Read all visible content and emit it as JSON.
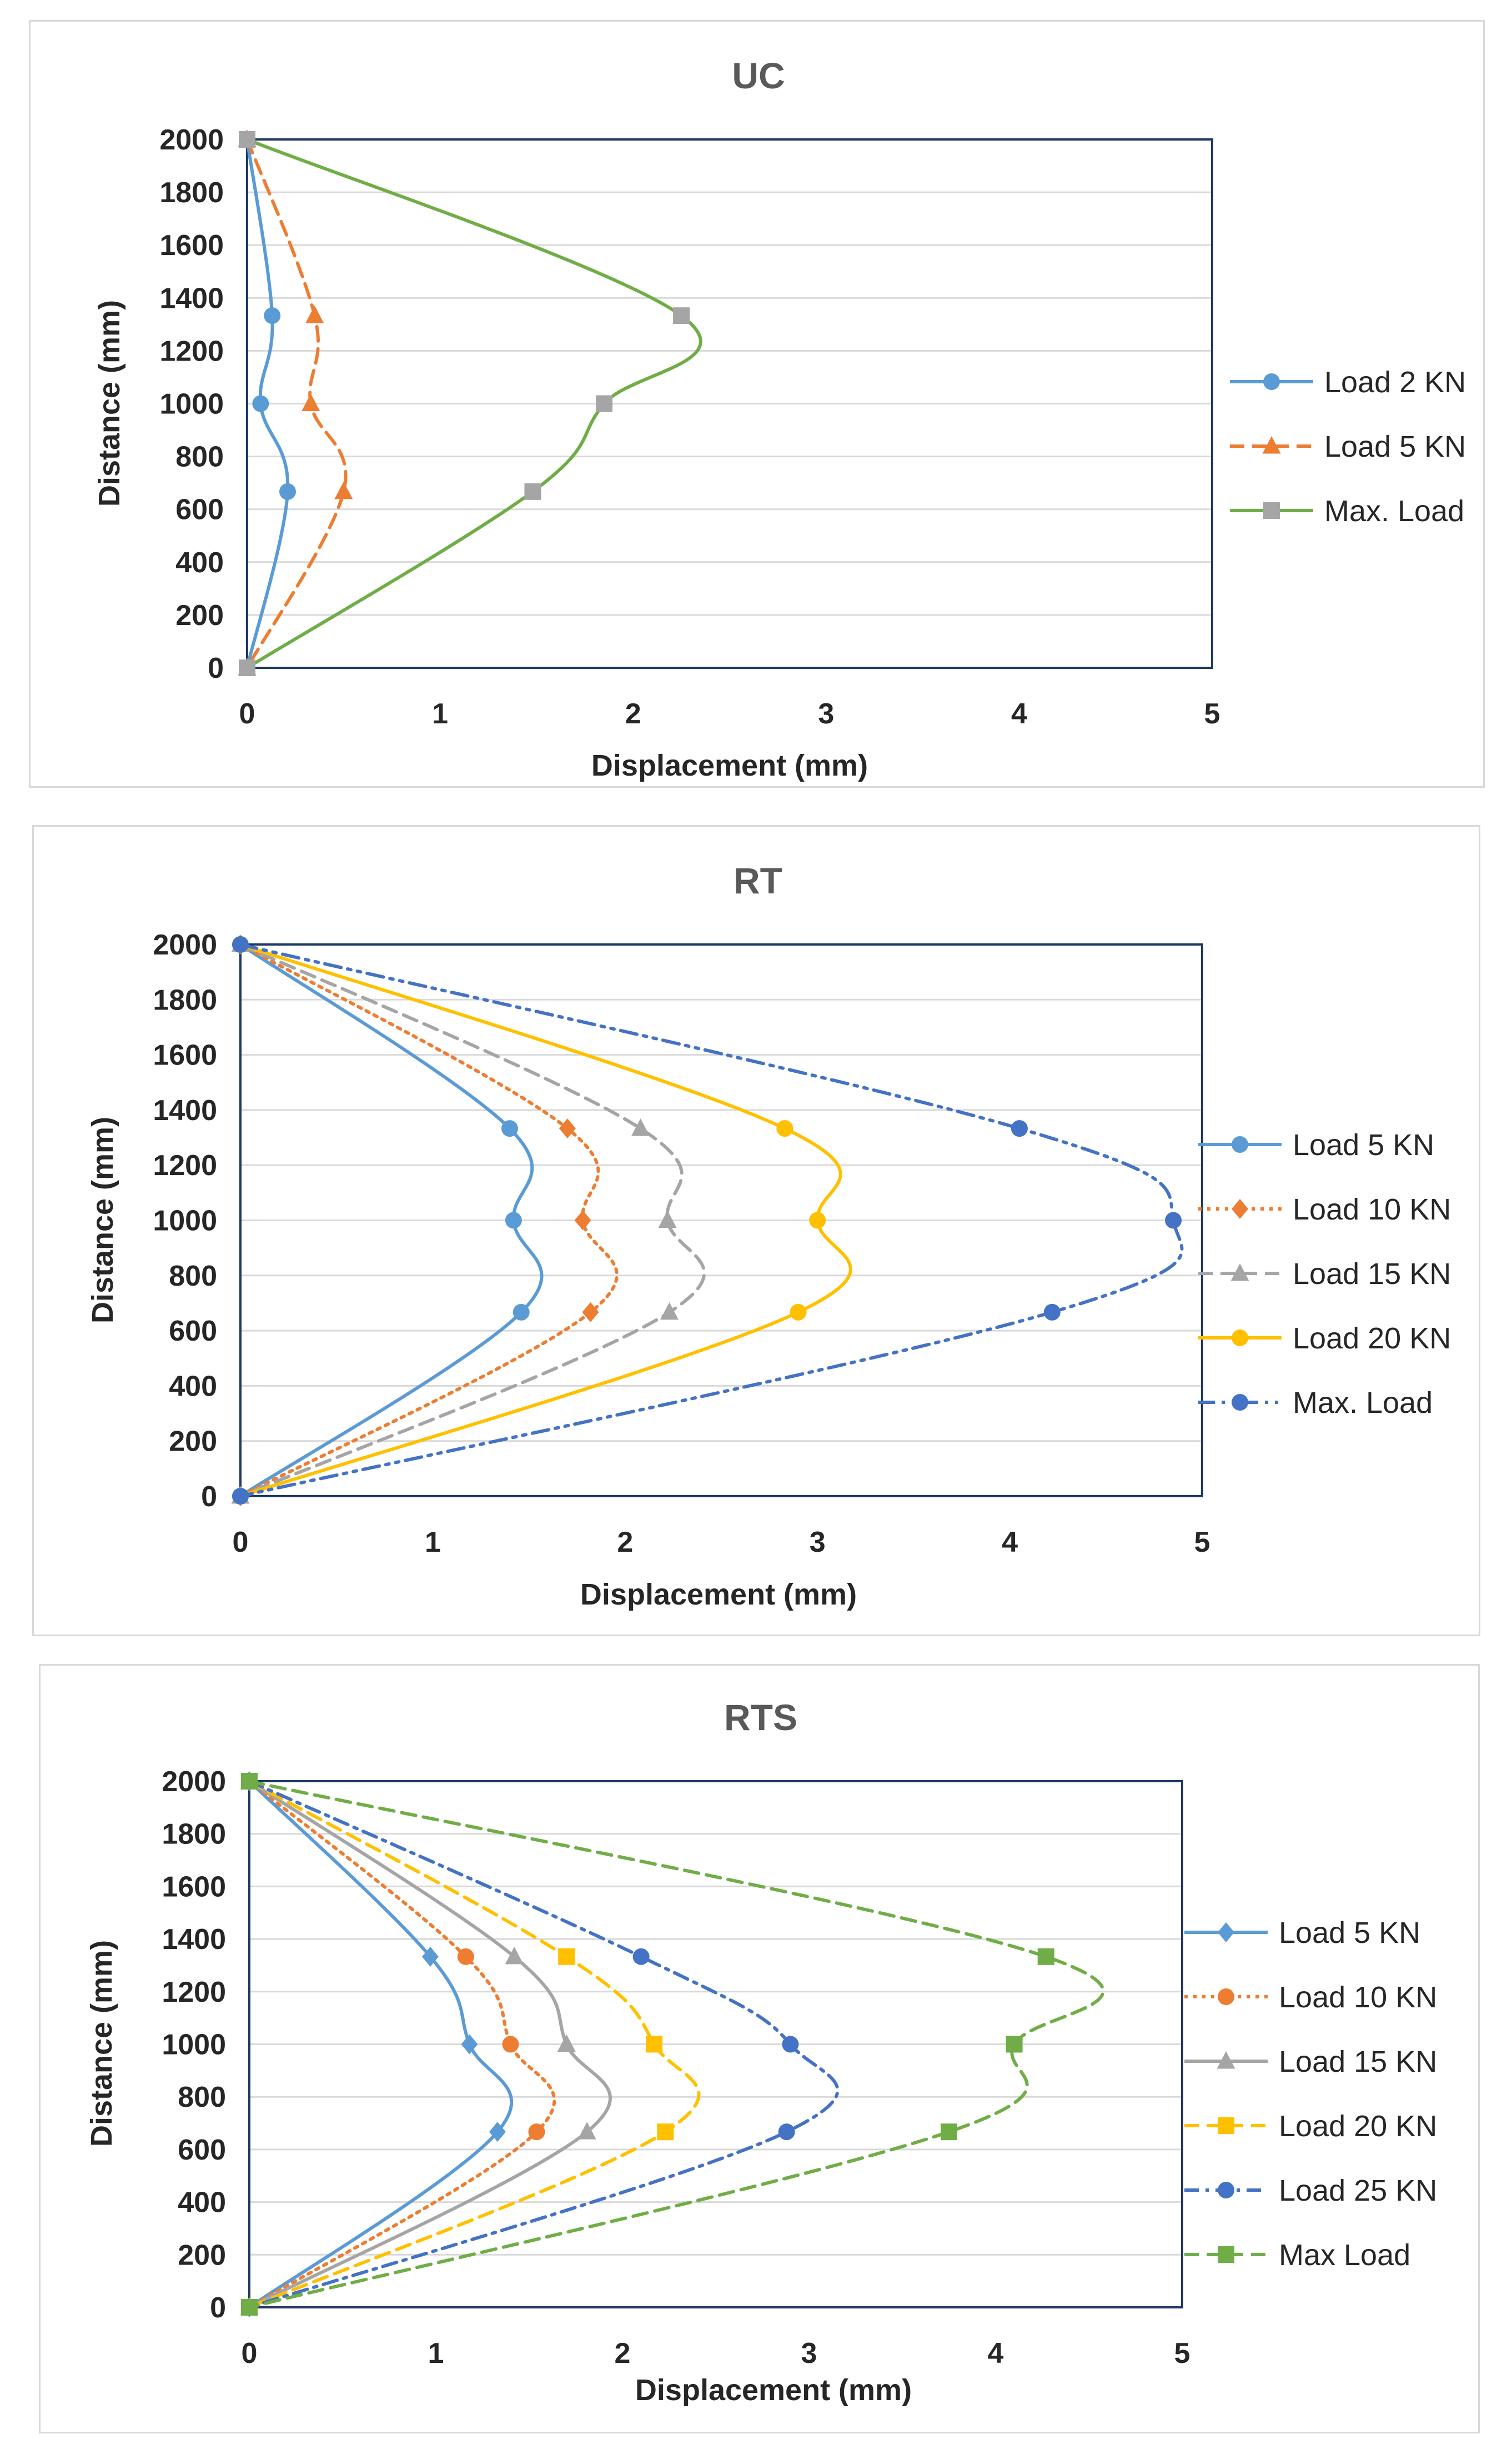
{
  "chart_data": [
    {
      "type": "line",
      "title": "UC",
      "xlabel": "Displacement (mm)",
      "ylabel": "Distance (mm)",
      "xlim": [
        0,
        5
      ],
      "ylim": [
        0,
        2000
      ],
      "xticks": [
        "0",
        "1",
        "2",
        "3",
        "4",
        "5"
      ],
      "yticks": [
        "0",
        "200",
        "400",
        "600",
        "800",
        "1000",
        "1200",
        "1400",
        "1600",
        "1800",
        "2000"
      ],
      "grid": "horizontal",
      "legend_position": "right",
      "series": [
        {
          "name": "Load 2 KN",
          "color": "#5b9bd5",
          "dash": "solid",
          "marker": "circle",
          "x": [
            0,
            0.13,
            0.07,
            0.21,
            0
          ],
          "y": [
            2000,
            1333,
            1000,
            667,
            0
          ]
        },
        {
          "name": "Load 5 KN",
          "color": "#ed7d31",
          "dash": "dash",
          "marker": "triangle",
          "x": [
            0,
            0.35,
            0.33,
            0.5,
            0
          ],
          "y": [
            2000,
            1333,
            1000,
            667,
            0
          ]
        },
        {
          "name": "Max. Load",
          "color": "#70ad47",
          "dash": "solid",
          "marker": "square",
          "marker_color": "#a5a5a5",
          "x": [
            0,
            2.25,
            1.85,
            1.48,
            0
          ],
          "y": [
            2000,
            1333,
            1000,
            667,
            0
          ]
        }
      ]
    },
    {
      "type": "line",
      "title": "RT",
      "xlabel": "Displacement (mm)",
      "ylabel": "Distance (mm)",
      "xlim": [
        0,
        5
      ],
      "ylim": [
        0,
        2000
      ],
      "xticks": [
        "0",
        "1",
        "2",
        "3",
        "4",
        "5"
      ],
      "yticks": [
        "0",
        "200",
        "400",
        "600",
        "800",
        "1000",
        "1200",
        "1400",
        "1600",
        "1800",
        "2000"
      ],
      "grid": "horizontal",
      "legend_position": "right",
      "series": [
        {
          "name": "Load 5 KN",
          "color": "#5b9bd5",
          "dash": "solid",
          "marker": "circle",
          "x": [
            0,
            1.4,
            1.42,
            1.46,
            0
          ],
          "y": [
            2000,
            1333,
            1000,
            667,
            0
          ]
        },
        {
          "name": "Load 10 KN",
          "color": "#ed7d31",
          "dash": "dot",
          "marker": "diamond",
          "x": [
            0,
            1.7,
            1.78,
            1.82,
            0
          ],
          "y": [
            2000,
            1333,
            1000,
            667,
            0
          ]
        },
        {
          "name": "Load 15 KN",
          "color": "#a5a5a5",
          "dash": "dash",
          "marker": "triangle",
          "x": [
            0,
            2.08,
            2.22,
            2.23,
            0
          ],
          "y": [
            2000,
            1333,
            1000,
            667,
            0
          ]
        },
        {
          "name": "Load 20 KN",
          "color": "#ffc000",
          "dash": "solid",
          "marker": "circle",
          "x": [
            0,
            2.83,
            3.0,
            2.9,
            0
          ],
          "y": [
            2000,
            1333,
            1000,
            667,
            0
          ]
        },
        {
          "name": "Max. Load",
          "color": "#4472c4",
          "dash": "dashdotdot",
          "marker": "circle",
          "x": [
            0,
            4.05,
            4.85,
            4.22,
            0
          ],
          "y": [
            2000,
            1333,
            1000,
            667,
            0
          ]
        }
      ]
    },
    {
      "type": "line",
      "title": "RTS",
      "xlabel": "Displacement (mm)",
      "ylabel": "Distance (mm)",
      "xlim": [
        0,
        5
      ],
      "ylim": [
        0,
        2000
      ],
      "xticks": [
        "0",
        "1",
        "2",
        "3",
        "4",
        "5"
      ],
      "yticks": [
        "0",
        "200",
        "400",
        "600",
        "800",
        "1000",
        "1200",
        "1400",
        "1600",
        "1800",
        "2000"
      ],
      "grid": "horizontal",
      "legend_position": "right",
      "series": [
        {
          "name": "Load 5 KN",
          "color": "#5b9bd5",
          "dash": "solid",
          "marker": "diamond",
          "x": [
            0,
            0.97,
            1.18,
            1.33,
            0
          ],
          "y": [
            2000,
            1333,
            1000,
            667,
            0
          ]
        },
        {
          "name": "Load 10 KN",
          "color": "#ed7d31",
          "dash": "dot",
          "marker": "circle",
          "x": [
            0,
            1.16,
            1.4,
            1.54,
            0
          ],
          "y": [
            2000,
            1333,
            1000,
            667,
            0
          ]
        },
        {
          "name": "Load 15 KN",
          "color": "#a5a5a5",
          "dash": "solid",
          "marker": "triangle",
          "x": [
            0,
            1.42,
            1.7,
            1.81,
            0
          ],
          "y": [
            2000,
            1333,
            1000,
            667,
            0
          ]
        },
        {
          "name": "Load 20 KN",
          "color": "#ffc000",
          "dash": "dash",
          "marker": "square",
          "x": [
            0,
            1.7,
            2.17,
            2.23,
            0
          ],
          "y": [
            2000,
            1333,
            1000,
            667,
            0
          ]
        },
        {
          "name": "Load 25 KN",
          "color": "#4472c4",
          "dash": "dashdot",
          "marker": "circle",
          "x": [
            0,
            2.1,
            2.9,
            2.88,
            0
          ],
          "y": [
            2000,
            1333,
            1000,
            667,
            0
          ]
        },
        {
          "name": "Max Load",
          "color": "#70ad47",
          "dash": "dash",
          "marker": "square",
          "x": [
            0,
            4.27,
            4.1,
            3.75,
            0
          ],
          "y": [
            2000,
            1333,
            1000,
            667,
            0
          ]
        }
      ]
    }
  ]
}
